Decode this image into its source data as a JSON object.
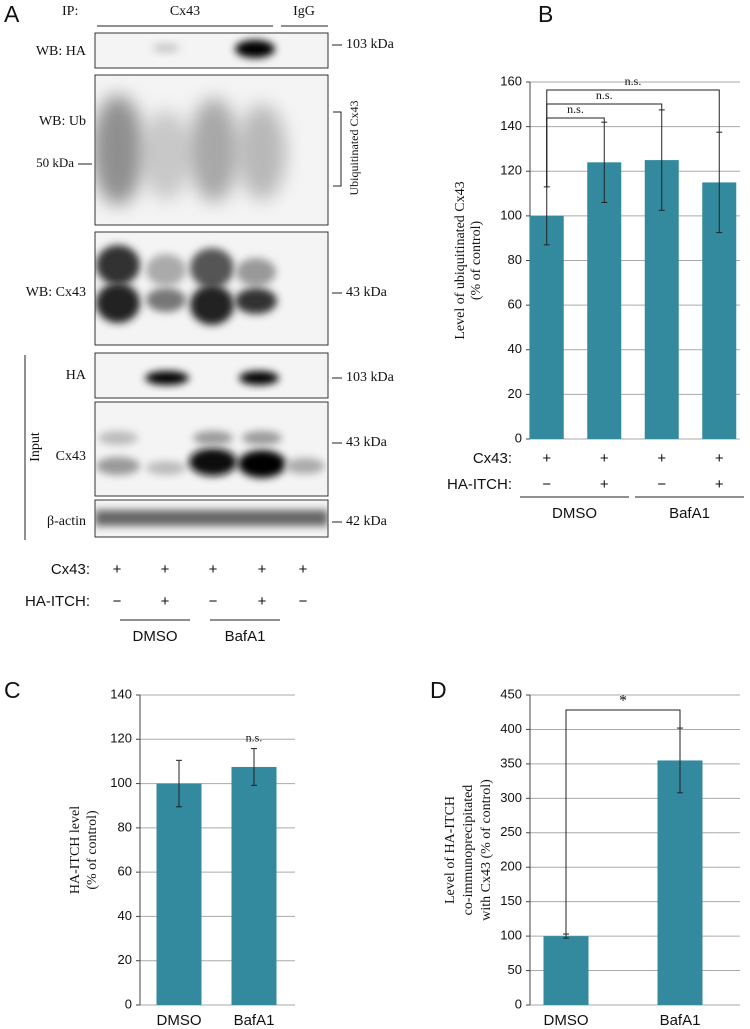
{
  "blot": {
    "panel": "A",
    "ip_label": "IP:",
    "ip_groups": [
      "Cx43",
      "IgG"
    ],
    "strips": [
      {
        "label": "WB: HA",
        "marker": "103 kDa"
      },
      {
        "label": "WB: Ub",
        "marker": "50 kDa",
        "bracket_label": "Ubiquitinated Cx43"
      },
      {
        "label": "WB: Cx43",
        "marker": "43 kDa"
      },
      {
        "label": "HA",
        "marker": "103 kDa"
      },
      {
        "label": "Cx43",
        "marker": "43 kDa"
      },
      {
        "label": "β-actin",
        "marker": "42 kDa"
      }
    ],
    "input_label": "Input",
    "conditions": {
      "rows": [
        {
          "label": "Cx43:",
          "signs": [
            "+",
            "+",
            "+",
            "+",
            "+"
          ]
        },
        {
          "label": "HA-ITCH:",
          "signs": [
            "−",
            "+",
            "−",
            "+",
            "−"
          ]
        }
      ],
      "groups": [
        "DMSO",
        "BafA1"
      ]
    }
  },
  "chart_data": [
    {
      "type": "bar",
      "panel": "B",
      "ylabel": [
        "Level of ubiquitinated Cx43",
        "(% of control)"
      ],
      "values": [
        100,
        124,
        125,
        115
      ],
      "errors": [
        13,
        18,
        22.5,
        22.5
      ],
      "color": "#338a9e",
      "ylim": [
        0,
        160
      ],
      "yticks": [
        0,
        20,
        40,
        60,
        80,
        100,
        120,
        140,
        160
      ],
      "grid": true,
      "annotations": [
        "n.s.",
        "n.s.",
        "n.s."
      ],
      "conditions": {
        "rows": [
          {
            "label": "Cx43:",
            "signs": [
              "+",
              "+",
              "+",
              "+"
            ]
          },
          {
            "label": "HA-ITCH:",
            "signs": [
              "−",
              "+",
              "−",
              "+"
            ]
          }
        ],
        "groups": [
          "DMSO",
          "BafA1"
        ]
      }
    },
    {
      "type": "bar",
      "panel": "C",
      "ylabel": [
        "HA-ITCH level",
        "(% of control)"
      ],
      "categories": [
        "DMSO",
        "BafA1"
      ],
      "values": [
        100,
        107.5
      ],
      "errors": [
        10.5,
        8.3
      ],
      "color": "#338a9e",
      "ylim": [
        0,
        140
      ],
      "yticks": [
        0,
        20,
        40,
        60,
        80,
        100,
        120,
        140
      ],
      "grid": true,
      "annotations": [
        "n.s."
      ]
    },
    {
      "type": "bar",
      "panel": "D",
      "ylabel": [
        "Level of HA-ITCH",
        "co-immunoprecipitated",
        "with Cx43  (% of control)"
      ],
      "categories": [
        "DMSO",
        "BafA1"
      ],
      "values": [
        100,
        355
      ],
      "errors": [
        3,
        47
      ],
      "color": "#338a9e",
      "ylim": [
        0,
        450
      ],
      "yticks": [
        0,
        50,
        100,
        150,
        200,
        250,
        300,
        350,
        400,
        450
      ],
      "grid": true,
      "annotations": [
        "*"
      ]
    }
  ]
}
